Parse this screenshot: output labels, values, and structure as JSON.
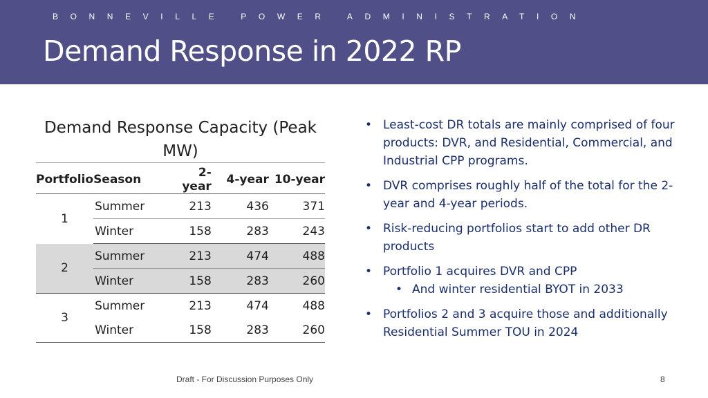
{
  "header": {
    "org": "BONNEVILLE POWER ADMINISTRATION",
    "title": "Demand Response in 2022 RP",
    "bg_color": "#514f87"
  },
  "table": {
    "title": "Demand Response Capacity (Peak MW)",
    "columns": [
      "Portfolio",
      "Season",
      "2-year",
      "4-year",
      "10-year"
    ],
    "groups": [
      {
        "portfolio": "1",
        "rows": [
          {
            "season": "Summer",
            "y2": "213",
            "y4": "436",
            "y10": "371"
          },
          {
            "season": "Winter",
            "y2": "158",
            "y4": "283",
            "y10": "243"
          }
        ]
      },
      {
        "portfolio": "2",
        "rows": [
          {
            "season": "Summer",
            "y2": "213",
            "y4": "474",
            "y10": "488"
          },
          {
            "season": "Winter",
            "y2": "158",
            "y4": "283",
            "y10": "260"
          }
        ]
      },
      {
        "portfolio": "3",
        "rows": [
          {
            "season": "Summer",
            "y2": "213",
            "y4": "474",
            "y10": "488"
          },
          {
            "season": "Winter",
            "y2": "158",
            "y4": "283",
            "y10": "260"
          }
        ]
      }
    ],
    "shade_color": "#d9d9d9"
  },
  "bullets": [
    {
      "text": "Least-cost DR totals are mainly comprised of four products: DVR, and Residential, Commercial, and Industrial CPP programs."
    },
    {
      "text": "DVR comprises roughly half of the total for the 2-year and 4-year periods."
    },
    {
      "text": "Risk-reducing portfolios start to add other DR products"
    },
    {
      "text": "Portfolio 1 acquires DVR and CPP",
      "sub": [
        "And winter residential BYOT in 2033"
      ]
    },
    {
      "text": "Portfolios 2 and 3 acquire those and additionally Residential Summer TOU in 2024"
    }
  ],
  "bullet_color": "#1a2e6b",
  "footer": {
    "text": "Draft - For Discussion Purposes Only",
    "page": "8"
  }
}
